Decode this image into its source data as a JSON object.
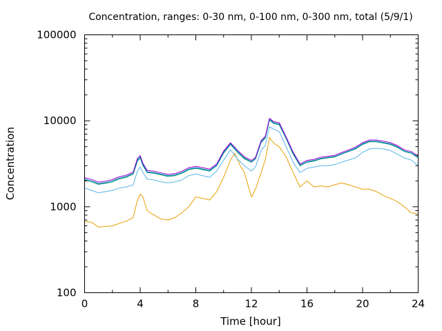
{
  "chart_data": {
    "type": "line",
    "title": "Concentration, ranges: 0-30 nm, 0-100 nm, 0-300 nm, total (5/9/1)",
    "xlabel": "Time [hour]",
    "ylabel": "Concentration",
    "xlim": [
      0,
      24
    ],
    "ylim": [
      100,
      100000
    ],
    "yscale": "log",
    "grid": false,
    "x_ticks": [
      "0",
      "4",
      "8",
      "12",
      "16",
      "20",
      "24"
    ],
    "y_ticks": [
      "100",
      "1000",
      "10000",
      "100000"
    ],
    "series": [
      {
        "color": "#e5a000",
        "points": [
          [
            0,
            670
          ],
          [
            0.5,
            660
          ],
          [
            1,
            580
          ],
          [
            1.5,
            590
          ],
          [
            2,
            600
          ],
          [
            2.5,
            640
          ],
          [
            3,
            680
          ],
          [
            3.5,
            750
          ],
          [
            3.8,
            1200
          ],
          [
            4,
            1400
          ],
          [
            4.2,
            1300
          ],
          [
            4.5,
            900
          ],
          [
            5,
            800
          ],
          [
            5.5,
            720
          ],
          [
            6,
            700
          ],
          [
            6.5,
            750
          ],
          [
            7,
            850
          ],
          [
            7.5,
            1000
          ],
          [
            8,
            1300
          ],
          [
            8.5,
            1250
          ],
          [
            9,
            1200
          ],
          [
            9.5,
            1500
          ],
          [
            10,
            2200
          ],
          [
            10.5,
            3500
          ],
          [
            10.8,
            4200
          ],
          [
            11.2,
            3000
          ],
          [
            11.5,
            2500
          ],
          [
            12,
            1300
          ],
          [
            12.3,
            1600
          ],
          [
            12.7,
            2500
          ],
          [
            13,
            3500
          ],
          [
            13.3,
            6400
          ],
          [
            13.6,
            5500
          ],
          [
            14,
            5000
          ],
          [
            14.5,
            3800
          ],
          [
            15,
            2500
          ],
          [
            15.5,
            1700
          ],
          [
            16,
            2000
          ],
          [
            16.5,
            1700
          ],
          [
            17,
            1750
          ],
          [
            17.5,
            1700
          ],
          [
            18,
            1800
          ],
          [
            18.5,
            1900
          ],
          [
            19,
            1800
          ],
          [
            19.5,
            1700
          ],
          [
            20,
            1600
          ],
          [
            20.5,
            1600
          ],
          [
            21,
            1500
          ],
          [
            21.5,
            1350
          ],
          [
            22,
            1250
          ],
          [
            22.5,
            1150
          ],
          [
            23,
            1000
          ],
          [
            23.5,
            850
          ],
          [
            24,
            830
          ]
        ]
      },
      {
        "color": "#56b4e9",
        "points": [
          [
            0,
            1650
          ],
          [
            0.5,
            1550
          ],
          [
            1,
            1450
          ],
          [
            1.5,
            1500
          ],
          [
            2,
            1550
          ],
          [
            2.5,
            1650
          ],
          [
            3,
            1700
          ],
          [
            3.5,
            1800
          ],
          [
            3.8,
            2600
          ],
          [
            4,
            2900
          ],
          [
            4.2,
            2500
          ],
          [
            4.5,
            2100
          ],
          [
            5,
            2050
          ],
          [
            5.5,
            1950
          ],
          [
            6,
            1900
          ],
          [
            6.5,
            1950
          ],
          [
            7,
            2050
          ],
          [
            7.5,
            2300
          ],
          [
            8,
            2400
          ],
          [
            8.5,
            2300
          ],
          [
            9,
            2200
          ],
          [
            9.5,
            2600
          ],
          [
            10,
            3500
          ],
          [
            10.5,
            4600
          ],
          [
            11,
            3600
          ],
          [
            11.5,
            3000
          ],
          [
            12,
            2600
          ],
          [
            12.3,
            2900
          ],
          [
            12.7,
            4500
          ],
          [
            13,
            5200
          ],
          [
            13.3,
            8500
          ],
          [
            13.6,
            8000
          ],
          [
            14,
            7500
          ],
          [
            14.5,
            5000
          ],
          [
            15,
            3300
          ],
          [
            15.5,
            2500
          ],
          [
            16,
            2800
          ],
          [
            16.5,
            2900
          ],
          [
            17,
            3000
          ],
          [
            17.5,
            3000
          ],
          [
            18,
            3100
          ],
          [
            18.5,
            3300
          ],
          [
            19,
            3500
          ],
          [
            19.5,
            3700
          ],
          [
            20,
            4300
          ],
          [
            20.5,
            4700
          ],
          [
            21,
            4800
          ],
          [
            21.5,
            4700
          ],
          [
            22,
            4500
          ],
          [
            22.5,
            4100
          ],
          [
            23,
            3700
          ],
          [
            23.5,
            3500
          ],
          [
            24,
            3000
          ]
        ]
      },
      {
        "color": "#009e73",
        "points": [
          [
            0,
            2050
          ],
          [
            0.5,
            1950
          ],
          [
            1,
            1820
          ],
          [
            1.5,
            1870
          ],
          [
            2,
            1950
          ],
          [
            2.5,
            2100
          ],
          [
            3,
            2200
          ],
          [
            3.5,
            2400
          ],
          [
            3.8,
            3400
          ],
          [
            4,
            3700
          ],
          [
            4.2,
            3000
          ],
          [
            4.5,
            2500
          ],
          [
            5,
            2450
          ],
          [
            5.5,
            2350
          ],
          [
            6,
            2250
          ],
          [
            6.5,
            2300
          ],
          [
            7,
            2450
          ],
          [
            7.5,
            2700
          ],
          [
            8,
            2800
          ],
          [
            8.5,
            2700
          ],
          [
            9,
            2600
          ],
          [
            9.5,
            3000
          ],
          [
            10,
            4200
          ],
          [
            10.5,
            5300
          ],
          [
            11,
            4300
          ],
          [
            11.5,
            3600
          ],
          [
            12,
            3300
          ],
          [
            12.3,
            3600
          ],
          [
            12.7,
            5600
          ],
          [
            13,
            6300
          ],
          [
            13.3,
            10200
          ],
          [
            13.6,
            9300
          ],
          [
            14,
            9000
          ],
          [
            14.5,
            6200
          ],
          [
            15,
            4100
          ],
          [
            15.5,
            3000
          ],
          [
            16,
            3300
          ],
          [
            16.5,
            3400
          ],
          [
            17,
            3600
          ],
          [
            17.5,
            3700
          ],
          [
            18,
            3800
          ],
          [
            18.5,
            4100
          ],
          [
            19,
            4400
          ],
          [
            19.5,
            4700
          ],
          [
            20,
            5300
          ],
          [
            20.5,
            5700
          ],
          [
            21,
            5700
          ],
          [
            21.5,
            5500
          ],
          [
            22,
            5300
          ],
          [
            22.5,
            4900
          ],
          [
            23,
            4400
          ],
          [
            23.5,
            4200
          ],
          [
            24,
            3700
          ]
        ]
      },
      {
        "color": "#0072b2",
        "points": [
          [
            0,
            2100
          ],
          [
            0.5,
            2000
          ],
          [
            1,
            1860
          ],
          [
            1.5,
            1910
          ],
          [
            2,
            2000
          ],
          [
            2.5,
            2150
          ],
          [
            3,
            2250
          ],
          [
            3.5,
            2450
          ],
          [
            3.8,
            3500
          ],
          [
            4,
            3800
          ],
          [
            4.2,
            3100
          ],
          [
            4.5,
            2550
          ],
          [
            5,
            2500
          ],
          [
            5.5,
            2400
          ],
          [
            6,
            2300
          ],
          [
            6.5,
            2350
          ],
          [
            7,
            2500
          ],
          [
            7.5,
            2750
          ],
          [
            8,
            2850
          ],
          [
            8.5,
            2750
          ],
          [
            9,
            2650
          ],
          [
            9.5,
            3050
          ],
          [
            10,
            4300
          ],
          [
            10.5,
            5400
          ],
          [
            11,
            4400
          ],
          [
            11.5,
            3700
          ],
          [
            12,
            3350
          ],
          [
            12.3,
            3650
          ],
          [
            12.7,
            5700
          ],
          [
            13,
            6400
          ],
          [
            13.3,
            10400
          ],
          [
            13.6,
            9500
          ],
          [
            14,
            9200
          ],
          [
            14.5,
            6300
          ],
          [
            15,
            4200
          ],
          [
            15.5,
            3050
          ],
          [
            16,
            3350
          ],
          [
            16.5,
            3450
          ],
          [
            17,
            3650
          ],
          [
            17.5,
            3750
          ],
          [
            18,
            3850
          ],
          [
            18.5,
            4150
          ],
          [
            19,
            4450
          ],
          [
            19.5,
            4800
          ],
          [
            20,
            5400
          ],
          [
            20.5,
            5800
          ],
          [
            21,
            5800
          ],
          [
            21.5,
            5600
          ],
          [
            22,
            5400
          ],
          [
            22.5,
            5000
          ],
          [
            23,
            4450
          ],
          [
            23.5,
            4250
          ],
          [
            24,
            3750
          ]
        ]
      },
      {
        "color": "#9400d3",
        "points": [
          [
            0,
            2180
          ],
          [
            0.5,
            2080
          ],
          [
            1,
            1930
          ],
          [
            1.5,
            1980
          ],
          [
            2,
            2070
          ],
          [
            2.5,
            2230
          ],
          [
            3,
            2330
          ],
          [
            3.5,
            2540
          ],
          [
            3.8,
            3650
          ],
          [
            4,
            3950
          ],
          [
            4.2,
            3200
          ],
          [
            4.5,
            2640
          ],
          [
            5,
            2590
          ],
          [
            5.5,
            2480
          ],
          [
            6,
            2380
          ],
          [
            6.5,
            2430
          ],
          [
            7,
            2590
          ],
          [
            7.5,
            2850
          ],
          [
            8,
            2950
          ],
          [
            8.5,
            2850
          ],
          [
            9,
            2740
          ],
          [
            9.5,
            3150
          ],
          [
            10,
            4450
          ],
          [
            10.5,
            5550
          ],
          [
            11,
            4550
          ],
          [
            11.5,
            3820
          ],
          [
            12,
            3460
          ],
          [
            12.3,
            3770
          ],
          [
            12.7,
            5880
          ],
          [
            13,
            6600
          ],
          [
            13.3,
            10700
          ],
          [
            13.6,
            9800
          ],
          [
            14,
            9500
          ],
          [
            14.5,
            6500
          ],
          [
            15,
            4330
          ],
          [
            15.5,
            3150
          ],
          [
            16,
            3460
          ],
          [
            16.5,
            3560
          ],
          [
            17,
            3770
          ],
          [
            17.5,
            3870
          ],
          [
            18,
            3970
          ],
          [
            18.5,
            4280
          ],
          [
            19,
            4590
          ],
          [
            19.5,
            4950
          ],
          [
            20,
            5570
          ],
          [
            20.5,
            5980
          ],
          [
            21,
            5980
          ],
          [
            21.5,
            5780
          ],
          [
            22,
            5570
          ],
          [
            22.5,
            5160
          ],
          [
            23,
            4590
          ],
          [
            23.5,
            4390
          ],
          [
            24,
            3870
          ]
        ]
      }
    ]
  }
}
